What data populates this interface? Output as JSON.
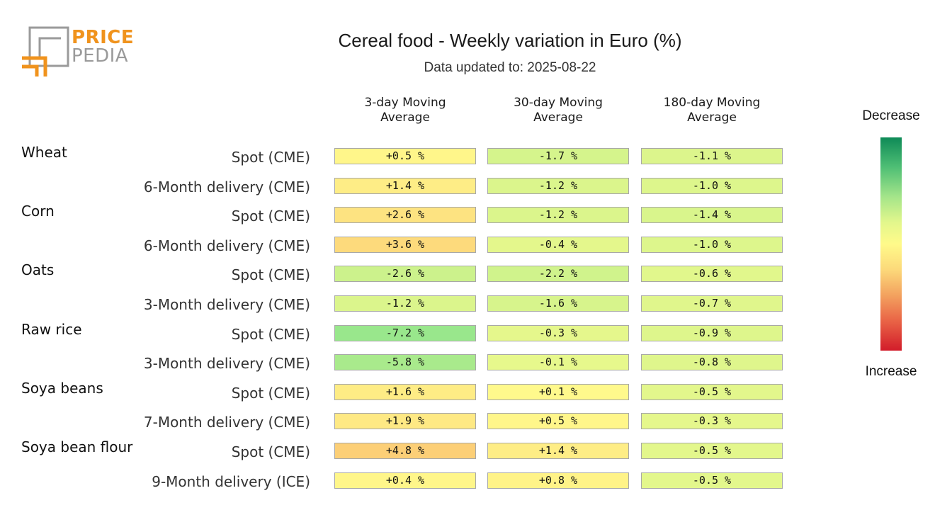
{
  "header": {
    "logo_line1": "PRICE",
    "logo_line2": "PEDIA",
    "title": "Cereal food - Weekly variation in Euro (%)",
    "subtitle": "Data updated to: 2025-08-22"
  },
  "legend": {
    "top_label": "Decrease",
    "bottom_label": "Increase"
  },
  "colors": {
    "logo_orange": "#f0931d",
    "logo_grey": "#9a9a9a",
    "scale_decrease": "#0e8a57",
    "scale_neutral": "#fffa8a",
    "scale_increase": "#d21c2a"
  },
  "chart_data": {
    "type": "heatmap",
    "title": "Cereal food - Weekly variation in Euro (%)",
    "subtitle": "Data updated to: 2025-08-22",
    "columns": [
      "3-day Moving\nAverage",
      "30-day Moving\nAverage",
      "180-day Moving\nAverage"
    ],
    "groups": [
      {
        "name": "Wheat",
        "rows": [
          {
            "label": "Spot (CME)",
            "values": [
              0.5,
              -1.7,
              -1.1
            ],
            "texts": [
              "+0.5 %",
              "-1.7 %",
              "-1.1 %"
            ]
          },
          {
            "label": "6-Month delivery (CME)",
            "values": [
              1.4,
              -1.2,
              -1.0
            ],
            "texts": [
              "+1.4 %",
              "-1.2 %",
              "-1.0 %"
            ]
          }
        ]
      },
      {
        "name": "Corn",
        "rows": [
          {
            "label": "Spot (CME)",
            "values": [
              2.6,
              -1.2,
              -1.4
            ],
            "texts": [
              "+2.6 %",
              "-1.2 %",
              "-1.4 %"
            ]
          },
          {
            "label": "6-Month delivery (CME)",
            "values": [
              3.6,
              -0.4,
              -1.0
            ],
            "texts": [
              "+3.6 %",
              "-0.4 %",
              "-1.0 %"
            ]
          }
        ]
      },
      {
        "name": "Oats",
        "rows": [
          {
            "label": "Spot (CME)",
            "values": [
              -2.6,
              -2.2,
              -0.6
            ],
            "texts": [
              "-2.6 %",
              "-2.2 %",
              "-0.6 %"
            ]
          },
          {
            "label": "3-Month delivery (CME)",
            "values": [
              -1.2,
              -1.6,
              -0.7
            ],
            "texts": [
              "-1.2 %",
              "-1.6 %",
              "-0.7 %"
            ]
          }
        ]
      },
      {
        "name": "Raw rice",
        "rows": [
          {
            "label": "Spot (CME)",
            "values": [
              -7.2,
              -0.3,
              -0.9
            ],
            "texts": [
              "-7.2 %",
              "-0.3 %",
              "-0.9 %"
            ]
          },
          {
            "label": "3-Month delivery (CME)",
            "values": [
              -5.8,
              -0.1,
              -0.8
            ],
            "texts": [
              "-5.8 %",
              "-0.1 %",
              "-0.8 %"
            ]
          }
        ]
      },
      {
        "name": "Soya beans",
        "rows": [
          {
            "label": "Spot (CME)",
            "values": [
              1.6,
              0.1,
              -0.5
            ],
            "texts": [
              "+1.6 %",
              "+0.1 %",
              "-0.5 %"
            ]
          },
          {
            "label": "7-Month delivery (CME)",
            "values": [
              1.9,
              0.5,
              -0.3
            ],
            "texts": [
              "+1.9 %",
              "+0.5 %",
              "-0.3 %"
            ]
          }
        ]
      },
      {
        "name": "Soya bean flour",
        "rows": [
          {
            "label": "Spot (CME)",
            "values": [
              4.8,
              1.4,
              -0.5
            ],
            "texts": [
              "+4.8 %",
              "+1.4 %",
              "-0.5 %"
            ]
          },
          {
            "label": "9-Month delivery (ICE)",
            "values": [
              0.4,
              0.8,
              -0.5
            ],
            "texts": [
              "+0.4 %",
              "+0.8 %",
              "-0.5 %"
            ]
          }
        ]
      }
    ],
    "color_scale": {
      "decrease_label": "Decrease",
      "increase_label": "Increase"
    }
  }
}
